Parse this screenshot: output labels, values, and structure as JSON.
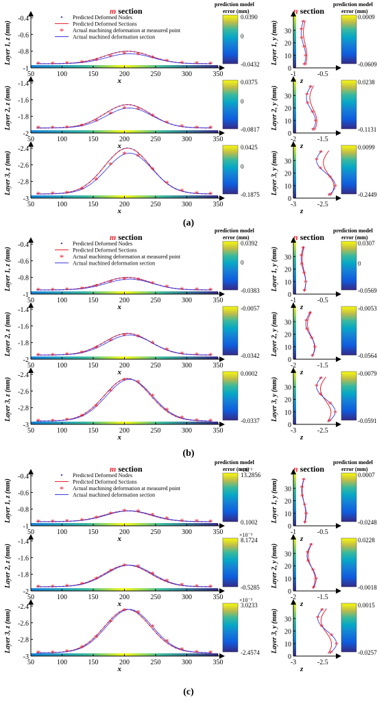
{
  "figure": {
    "panel_labels": [
      "(a)",
      "(b)",
      "(c)"
    ],
    "m_title_letter": "m",
    "n_title_letter": "n",
    "title_word": " section",
    "colorbar_title_line1": "prediction model",
    "colorbar_title_line2": "error (mm)",
    "x_axis_label_m": "x",
    "x_axis_label_n": "z",
    "legend": [
      "Predicted Deformed Nodes",
      "Predicted Deformed Sections",
      "Actual machining deformation at measured point",
      "Actual machined deformation section"
    ],
    "layer_labels_m": [
      "Layer 1,  z (mm)",
      "Layer 2,  z (mm)",
      "Layer 3,  z (mm)"
    ],
    "layer_labels_n": [
      "Layer 1,  y (mm)",
      "Layer 2,  y (mm)",
      "Layer 3,  y (mm)"
    ]
  },
  "colors": {
    "predicted": "#e8202a",
    "actual": "#3a3adf",
    "axis": "#000000"
  },
  "chart_data": [
    {
      "panel": "(a)",
      "type": "line",
      "m_section": {
        "x_ticks": [
          50,
          100,
          150,
          200,
          250,
          300,
          350
        ],
        "xlim": [
          50,
          350
        ],
        "layers": [
          {
            "ylim": [
              -1,
              -0.4
            ],
            "y_ticks": [
              "-0.4",
              "-0.6",
              "-0.8",
              "-1"
            ],
            "base": -0.95,
            "predicted_peak": -0.8,
            "actual_peak": -0.83,
            "actual_offset": 0
          },
          {
            "ylim": [
              -2,
              -1.4
            ],
            "y_ticks": [
              "-1.4",
              "-1.6",
              "-1.8",
              "-2"
            ],
            "base": -1.94,
            "predicted_peak": -1.66,
            "actual_peak": -1.7,
            "actual_offset": 0
          },
          {
            "ylim": [
              -3,
              -2.4
            ],
            "y_ticks": [
              "-2.4",
              "-2.6",
              "-2.8",
              "-3"
            ],
            "base": -2.95,
            "predicted_peak": -2.4,
            "actual_peak": -2.46,
            "actual_offset": 0
          }
        ],
        "colorbars": [
          {
            "max": "0.0390",
            "mid": "0",
            "min": "-0.0432"
          },
          {
            "max": "0.0375",
            "mid": "0",
            "min": "-0.0817"
          },
          {
            "max": "0.0425",
            "mid": "0",
            "min": "-0.1875"
          }
        ]
      },
      "n_section": {
        "y_ticks": [
          0,
          10,
          20,
          30
        ],
        "ylim": [
          0,
          40
        ],
        "layers": [
          {
            "x_ticks": [
              "-1",
              "-0.5"
            ],
            "xlim": [
              -1,
              -0.3
            ],
            "predicted": -0.8,
            "actual": -0.83
          },
          {
            "x_ticks": [
              "-2",
              "-1.5"
            ],
            "xlim": [
              -2,
              -1.3
            ],
            "predicted": -1.66,
            "actual": -1.7
          },
          {
            "x_ticks": [
              "-3",
              "-2.5"
            ],
            "xlim": [
              -3,
              -2.3
            ],
            "predicted": -2.4,
            "actual": -2.46
          }
        ],
        "colorbars": [
          {
            "max": "0.0009",
            "mid": "",
            "min": "-0.0609"
          },
          {
            "max": "0.0238",
            "mid": "",
            "min": "-0.1131"
          },
          {
            "max": "0.0099",
            "mid": "",
            "min": "-0.2449"
          }
        ]
      }
    },
    {
      "panel": "(b)",
      "type": "line",
      "m_section": {
        "x_ticks": [
          50,
          100,
          150,
          200,
          250,
          300,
          350
        ],
        "xlim": [
          50,
          350
        ],
        "layers": [
          {
            "ylim": [
              -1,
              -0.4
            ],
            "y_ticks": [
              "-0.4",
              "-0.6",
              "-0.8",
              "-1"
            ],
            "base": -0.95,
            "predicted_peak": -0.8,
            "actual_peak": -0.82,
            "actual_offset": 0
          },
          {
            "ylim": [
              -2,
              -1.4
            ],
            "y_ticks": [
              "-1.4",
              "-1.6",
              "-1.8",
              "-2"
            ],
            "base": -1.95,
            "predicted_peak": -1.69,
            "actual_peak": -1.71,
            "actual_offset": 0
          },
          {
            "ylim": [
              -3,
              -2.4
            ],
            "y_ticks": [
              "-2.4",
              "-2.6",
              "-2.8",
              "-3"
            ],
            "base": -2.96,
            "predicted_peak": -2.45,
            "actual_peak": -2.46,
            "actual_offset": 0
          }
        ],
        "colorbars": [
          {
            "max": "0.0392",
            "mid": "0",
            "min": "-0.0383"
          },
          {
            "max": "-0.0057",
            "mid": "",
            "min": "-0.0342"
          },
          {
            "max": "0.0002",
            "mid": "",
            "min": "-0.0337"
          }
        ]
      },
      "n_section": {
        "y_ticks": [
          0,
          10,
          20,
          30
        ],
        "ylim": [
          0,
          40
        ],
        "layers": [
          {
            "x_ticks": [
              "-1",
              "-0.5"
            ],
            "xlim": [
              -1,
              -0.3
            ],
            "predicted": -0.82,
            "actual": -0.83
          },
          {
            "x_ticks": [
              "-2",
              "-1.5"
            ],
            "xlim": [
              -2,
              -1.3
            ],
            "predicted": -1.7,
            "actual": -1.71
          },
          {
            "x_ticks": [
              "-3",
              "-2.5"
            ],
            "xlim": [
              -3,
              -2.3
            ],
            "predicted": -2.45,
            "actual": -2.46
          }
        ],
        "colorbars": [
          {
            "max": "0.0307",
            "mid": "0",
            "min": "-0.0569"
          },
          {
            "max": "-0.0053",
            "mid": "",
            "min": "-0.0564"
          },
          {
            "max": "-0.0079",
            "mid": "",
            "min": "-0.0591"
          }
        ]
      }
    },
    {
      "panel": "(c)",
      "type": "line",
      "m_section": {
        "x_ticks": [
          50,
          100,
          150,
          200,
          250,
          300,
          350
        ],
        "xlim": [
          50,
          350
        ],
        "layers": [
          {
            "ylim": [
              -1,
              -0.4
            ],
            "y_ticks": [
              "-0.4",
              "-0.6",
              "-0.8",
              "-1"
            ],
            "base": -0.95,
            "predicted_peak": -0.82,
            "actual_peak": -0.82,
            "actual_offset": 0
          },
          {
            "ylim": [
              -2,
              -1.4
            ],
            "y_ticks": [
              "-1.4",
              "-1.6",
              "-1.8",
              "-2"
            ],
            "base": -1.95,
            "predicted_peak": -1.69,
            "actual_peak": -1.69,
            "actual_offset": 0
          },
          {
            "ylim": [
              -3,
              -2.4
            ],
            "y_ticks": [
              "-2.4",
              "-2.6",
              "-2.8",
              "-3"
            ],
            "base": -2.96,
            "predicted_peak": -2.44,
            "actual_peak": -2.44,
            "actual_offset": 0
          }
        ],
        "colorbars": [
          {
            "scale": "×10⁻³",
            "max": "13.2856",
            "mid": "",
            "min": "0.1002"
          },
          {
            "scale": "×10⁻³",
            "max": "8.1724",
            "mid": "",
            "min": "-0.5285"
          },
          {
            "scale": "×10⁻³",
            "max": "3.0233",
            "mid": "",
            "min": "-2.4574"
          }
        ]
      },
      "n_section": {
        "y_ticks": [
          0,
          10,
          20,
          30
        ],
        "ylim": [
          0,
          40
        ],
        "layers": [
          {
            "x_ticks": [
              "-1",
              "-0.5"
            ],
            "xlim": [
              -1,
              -0.3
            ],
            "predicted": -0.82,
            "actual": -0.82
          },
          {
            "x_ticks": [
              "-2",
              "-1.5"
            ],
            "xlim": [
              -2,
              -1.3
            ],
            "predicted": -1.69,
            "actual": -1.69
          },
          {
            "x_ticks": [
              "-3",
              "-2.5"
            ],
            "xlim": [
              -3,
              -2.3
            ],
            "predicted": -2.44,
            "actual": -2.44
          }
        ],
        "colorbars": [
          {
            "max": "0.0007",
            "mid": "",
            "min": "-0.0248"
          },
          {
            "max": "0.0228",
            "mid": "",
            "min": "-0.0018"
          },
          {
            "max": "0.0015",
            "mid": "",
            "min": "-0.0257"
          }
        ]
      }
    }
  ]
}
